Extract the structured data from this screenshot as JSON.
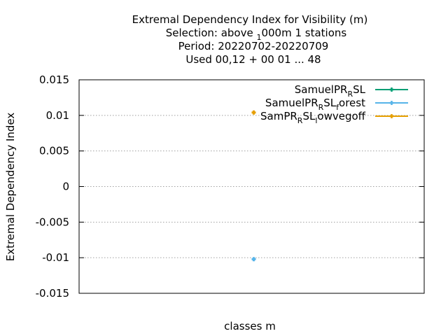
{
  "chart_data": {
    "type": "scatter",
    "title_lines": [
      "Extremal Dependency Index  for Visibility (m)",
      "Selection: above 1000m      1 stations",
      "Period: 20220702-20220709",
      "Used  00,12  + 00 01 ... 48"
    ],
    "xlabel": "classes m",
    "ylabel": "Extremal Dependency Index",
    "ylim": [
      -0.015,
      0.015
    ],
    "yticks": [
      0.015,
      0.01,
      0.005,
      0,
      -0.005,
      -0.01,
      -0.015
    ],
    "ytick_labels": [
      "0.015",
      "0.01",
      "0.005",
      "0",
      "-0.005",
      "-0.01",
      "-0.015"
    ],
    "grid": true,
    "legend_position": "top-right",
    "series": [
      {
        "name": "SamuelPR_R SL",
        "color": "#009e73",
        "points": []
      },
      {
        "name": "SamuelPR_R SL_f orest",
        "color": "#56b4e9",
        "points": [
          {
            "x": 0,
            "y": -0.0102
          }
        ]
      },
      {
        "name": "SamPR_R SL_l owvegoff",
        "color": "#e69f00",
        "points": [
          {
            "x": 0,
            "y": 0.0104
          }
        ]
      }
    ]
  }
}
